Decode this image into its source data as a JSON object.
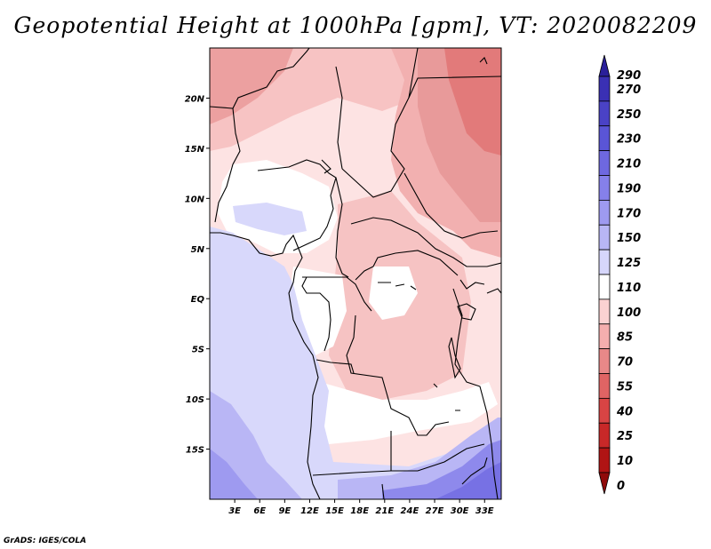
{
  "title": "Geopotential Height at 1000hPa [gpm], VT: 2020082209",
  "credit": "GrADS: IGES/COLA",
  "map": {
    "lon_range": [
      0,
      35
    ],
    "lat_range": [
      -20,
      25
    ],
    "lat_ticks": [
      "20N",
      "15N",
      "10N",
      "5N",
      "EQ",
      "5S",
      "10S",
      "15S"
    ],
    "lon_ticks": [
      "3E",
      "6E",
      "9E",
      "12E",
      "15E",
      "18E",
      "21E",
      "24E",
      "27E",
      "30E",
      "33E"
    ]
  },
  "colorbar": {
    "labels": [
      "290",
      "270",
      "250",
      "230",
      "210",
      "190",
      "170",
      "150",
      "125",
      "110",
      "100",
      "85",
      "70",
      "55",
      "40",
      "25",
      "10",
      "0"
    ],
    "colors": [
      "#2a1f9a",
      "#3a30b4",
      "#4a42c6",
      "#5a55d6",
      "#6e68e0",
      "#8580ea",
      "#9e9af0",
      "#b8b6f5",
      "#d6d6fb",
      "#ffffff",
      "#fbd2d2",
      "#f4aeae",
      "#e88888",
      "#e06464",
      "#d84444",
      "#c82828",
      "#b01414",
      "#900a0a"
    ]
  }
}
